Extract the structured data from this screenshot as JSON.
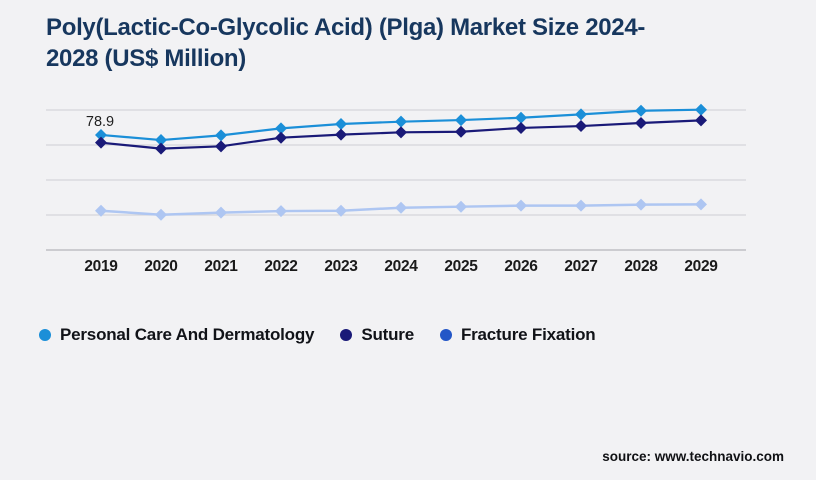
{
  "header": {
    "title": "Poly(Lactic-Co-Glycolic Acid) (Plga) Market Size 2024-2028 (US$ Million)"
  },
  "source": {
    "label": "source: www.technavio.com"
  },
  "colors": {
    "background": "#f2f2f4",
    "title": "#17375e",
    "gridline": "#d5d5d9",
    "axis_line": "#bfbfc4",
    "tick_label": "#1a1a1a",
    "data_label": "#1f1f1f"
  },
  "chart_data": {
    "type": "line",
    "title": "Poly(Lactic-Co-Glycolic Acid) (Plga) Market Size 2024-2028 (US$ Million)",
    "x": [
      "2019",
      "2020",
      "2021",
      "2022",
      "2023",
      "2024",
      "2025",
      "2026",
      "2027",
      "2028",
      "2029"
    ],
    "series": [
      {
        "name": "Personal Care And Dermatology",
        "color": "#1b8fd8",
        "marker": "diamond",
        "values": [
          78.9,
          75.4,
          78.6,
          83.4,
          86.4,
          88.0,
          89.1,
          90.7,
          93.0,
          95.5,
          96.2
        ]
      },
      {
        "name": "Suture",
        "color": "#1a1a78",
        "marker": "diamond",
        "values": [
          73.6,
          69.5,
          71.1,
          77.0,
          79.1,
          80.7,
          81.1,
          83.7,
          85.0,
          87.1,
          88.9
        ]
      },
      {
        "name": "Fracture Fixation",
        "color": "#aec6f2",
        "legend_color": "#2356c7",
        "marker": "diamond",
        "values": [
          26.9,
          24.2,
          25.6,
          26.7,
          26.9,
          29.0,
          29.7,
          30.4,
          30.4,
          31.1,
          31.3
        ]
      }
    ],
    "annotations": [
      {
        "series": 0,
        "index": 0,
        "text": "78.9"
      }
    ],
    "ylim": [
      0,
      96
    ],
    "xlabel": "",
    "ylabel": "",
    "grid": true,
    "gridlines": 4,
    "y_axis_labels_visible": false,
    "legend_position": "bottom-left"
  }
}
